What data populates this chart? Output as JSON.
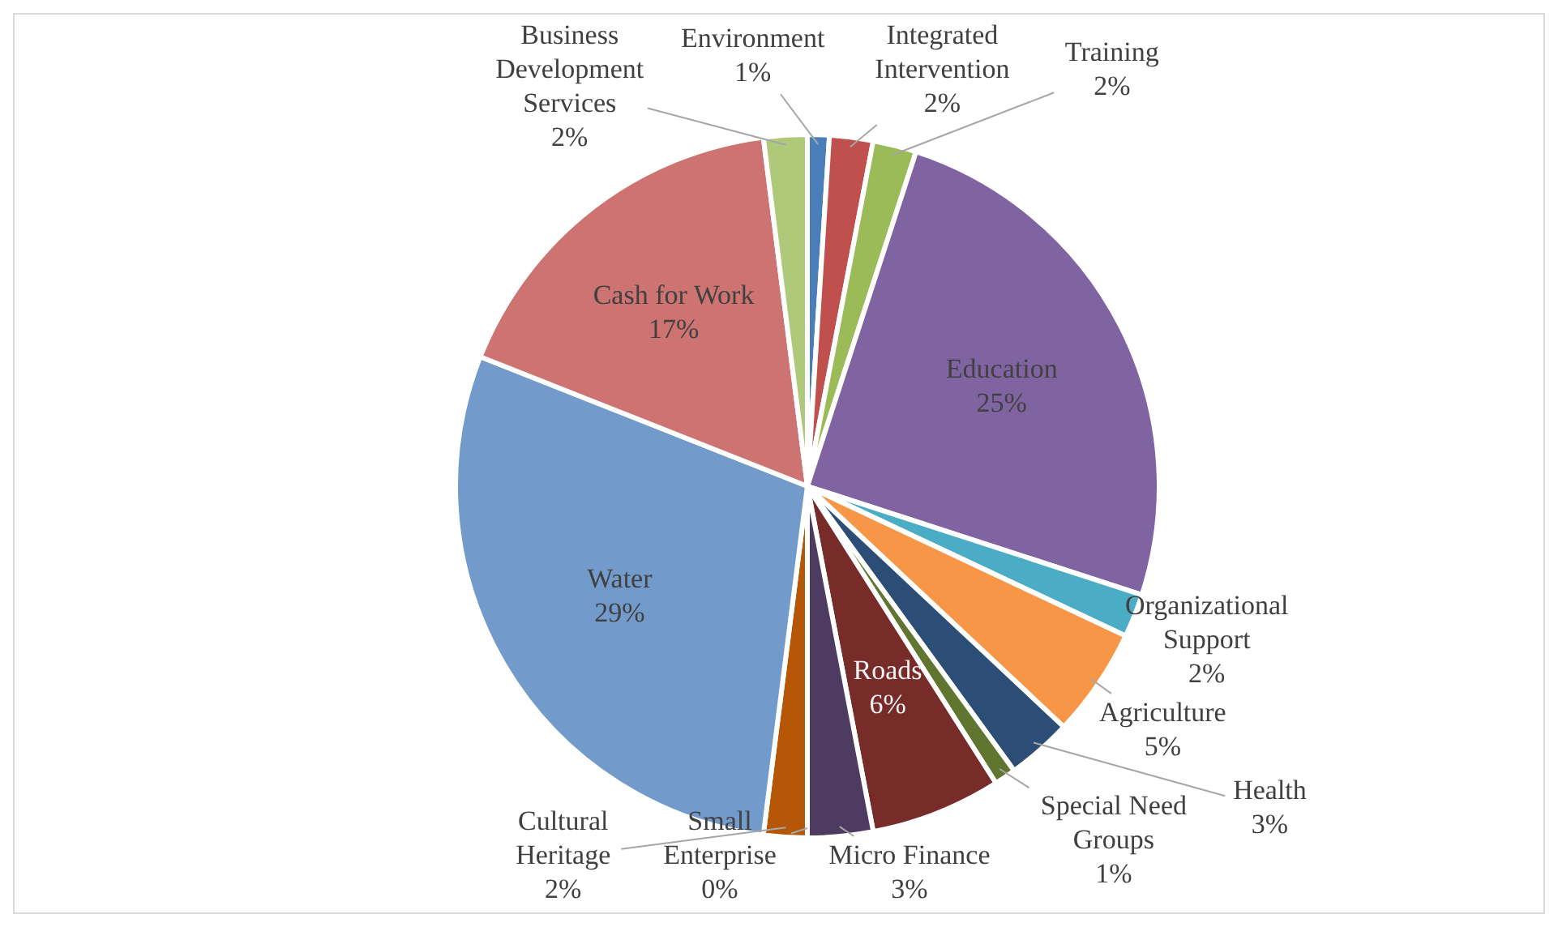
{
  "chart_data": {
    "type": "pie",
    "categories": [
      "Environment",
      "Integrated Intervention",
      "Training",
      "Education",
      "Organizational Support",
      "Agriculture",
      "Health",
      "Special Need Groups",
      "Roads",
      "Micro Finance",
      "Small Enterprise",
      "Cultural Heritage",
      "Water",
      "Cash for Work",
      "Business Development Services"
    ],
    "values": [
      1,
      2,
      2,
      25,
      2,
      5,
      3,
      1,
      6,
      3,
      0,
      2,
      29,
      17,
      2
    ],
    "value_labels": [
      "1%",
      "2%",
      "2%",
      "25%",
      "2%",
      "5%",
      "3%",
      "1%",
      "6%",
      "3%",
      "0%",
      "2%",
      "29%",
      "17%",
      "2%"
    ],
    "colors": [
      "#4a7ebb",
      "#c0504d",
      "#9bbb59",
      "#8064a2",
      "#4bacc6",
      "#f79646",
      "#2c4d75",
      "#5f7530",
      "#772c2a",
      "#4d3b62",
      "#276a7c",
      "#b65708",
      "#729aca",
      "#cd7371",
      "#afc97a"
    ]
  }
}
